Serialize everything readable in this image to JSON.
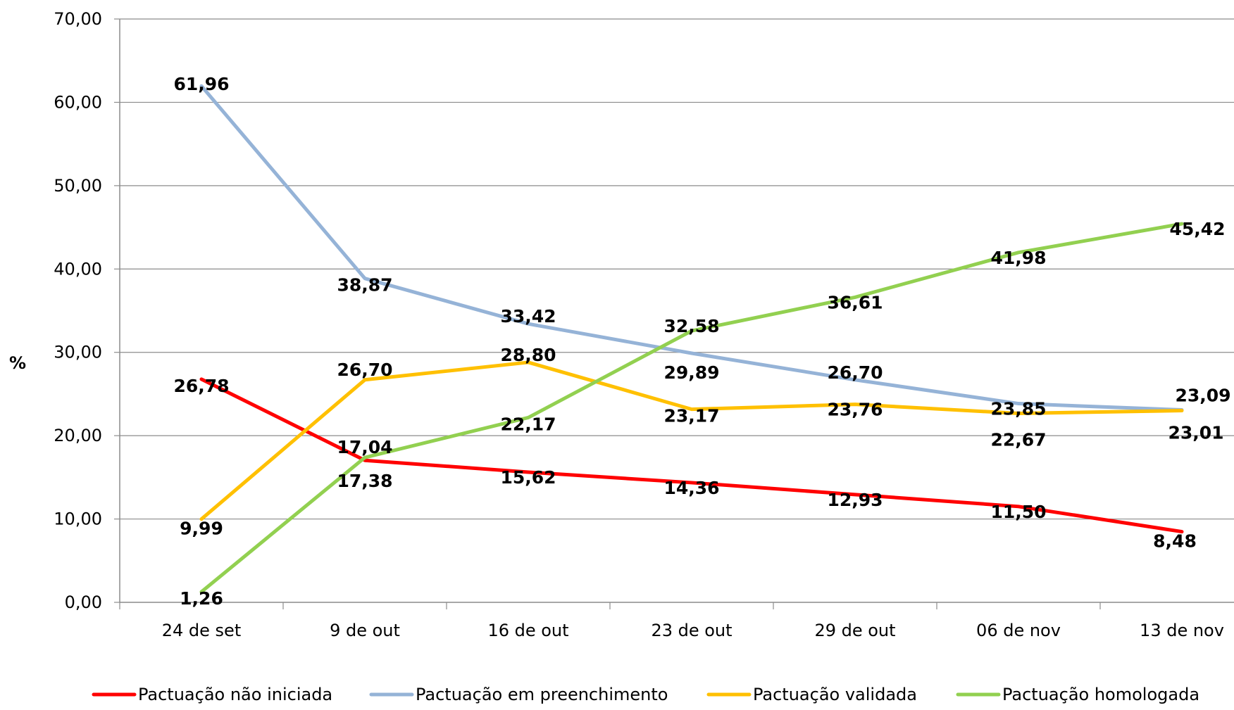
{
  "chart_data": {
    "type": "line",
    "title": "",
    "xlabel": "",
    "ylabel": "%",
    "ylim": [
      0,
      70
    ],
    "yticks": [
      "0,00",
      "10,00",
      "20,00",
      "30,00",
      "40,00",
      "50,00",
      "60,00",
      "70,00"
    ],
    "categories": [
      "24 de set",
      "9 de out",
      "16 de out",
      "23 de out",
      "29 de out",
      "06 de nov",
      "13 de nov"
    ],
    "grid": "horizontal",
    "legend_position": "bottom",
    "series": [
      {
        "name": "Pactuação não iniciada",
        "color": "#FF0000",
        "values": [
          26.78,
          17.04,
          15.62,
          14.36,
          12.93,
          11.5,
          8.48
        ],
        "labels": [
          "26,78",
          "17,04",
          "15,62",
          "14,36",
          "12,93",
          "11,50",
          "8,48"
        ]
      },
      {
        "name": "Pactuação em preenchimento",
        "color": "#95B3D7",
        "values": [
          61.96,
          38.87,
          33.42,
          29.89,
          26.7,
          23.85,
          23.09
        ],
        "labels": [
          "61,96",
          "38,87",
          "33,42",
          "29,89",
          "26,70",
          "23,85",
          "23,09"
        ]
      },
      {
        "name": "Pactuação validada",
        "color": "#FFC000",
        "values": [
          9.99,
          26.7,
          28.8,
          23.17,
          23.76,
          22.67,
          23.01
        ],
        "labels": [
          "9,99",
          "26,70",
          "28,80",
          "23,17",
          "23,76",
          "22,67",
          "23,01"
        ]
      },
      {
        "name": "Pactuação homologada",
        "color": "#92D050",
        "values": [
          1.26,
          17.38,
          22.17,
          32.58,
          36.61,
          41.98,
          45.42
        ],
        "labels": [
          "1,26",
          "17,38",
          "22,17",
          "32,58",
          "36,61",
          "41,98",
          "45,42"
        ]
      }
    ]
  }
}
